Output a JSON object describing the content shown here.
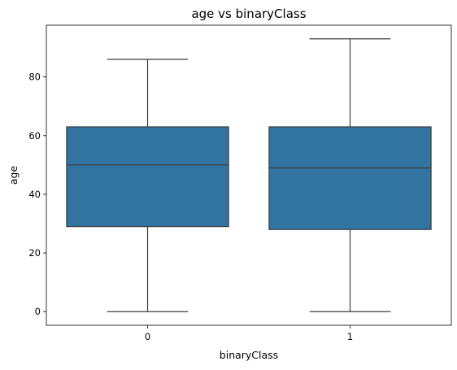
{
  "chart_data": {
    "type": "box",
    "title": "age vs binaryClass",
    "xlabel": "binaryClass",
    "ylabel": "age",
    "categories": [
      "0",
      "1"
    ],
    "boxes": [
      {
        "category": "0",
        "whisker_low": 0,
        "q1": 29,
        "median": 50,
        "q3": 63,
        "whisker_high": 86
      },
      {
        "category": "1",
        "whisker_low": 0,
        "q1": 28,
        "median": 49,
        "q3": 63,
        "whisker_high": 93
      }
    ],
    "ylim": [
      -4.65,
      97.65
    ],
    "yticks": [
      0,
      20,
      40,
      60,
      80
    ],
    "grid": false,
    "legend": "none",
    "colors": {
      "box_fill": "#3274a1",
      "line": "#3d3d3d",
      "axis": "#000000"
    }
  }
}
